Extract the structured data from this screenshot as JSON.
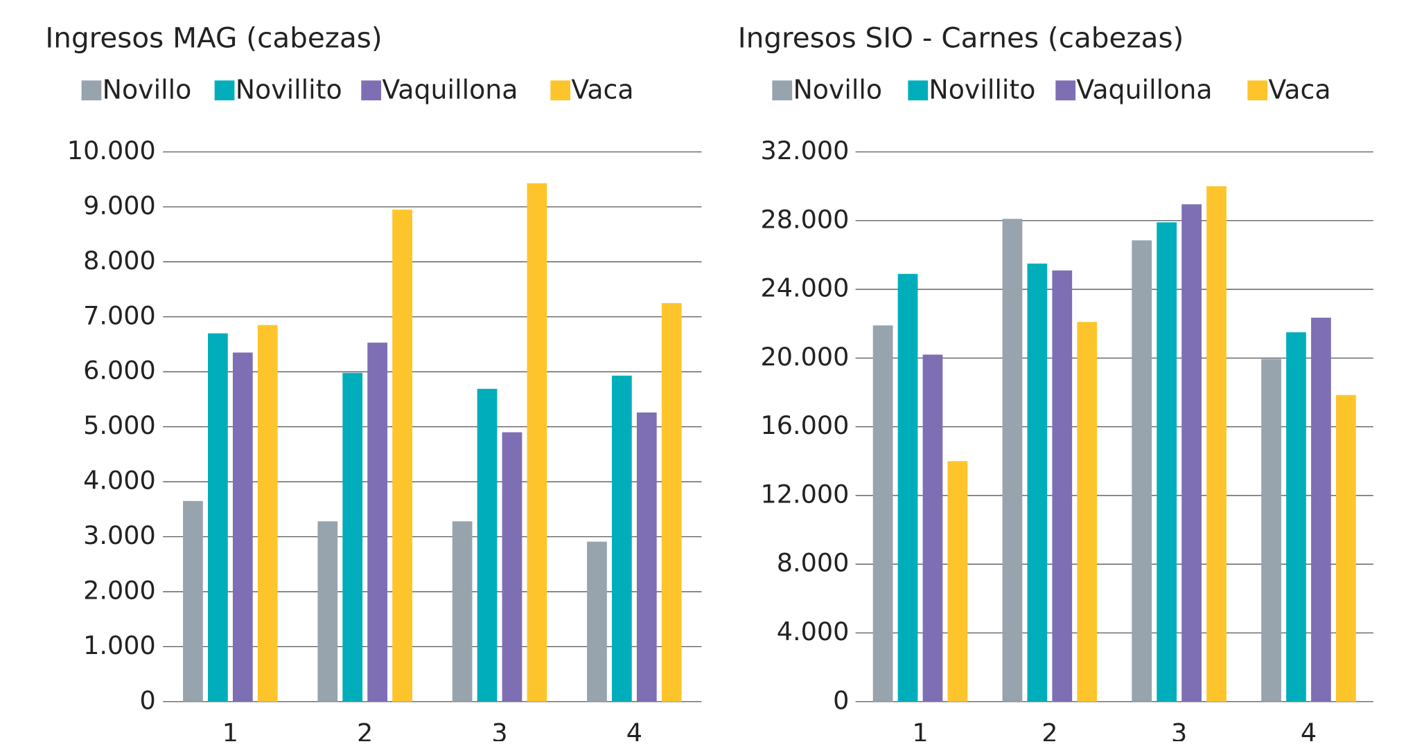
{
  "chart_data": [
    {
      "type": "bar",
      "title": "Ingresos MAG (cabezas)",
      "categories": [
        "1",
        "2",
        "3",
        "4"
      ],
      "series": [
        {
          "name": "Novillo",
          "color": "#97a3ad",
          "values": [
            3650,
            3280,
            3280,
            2910
          ]
        },
        {
          "name": "Novillito",
          "color": "#00aebb",
          "values": [
            6700,
            5980,
            5690,
            5930
          ]
        },
        {
          "name": "Vaquillona",
          "color": "#7e6fb4",
          "values": [
            6350,
            6530,
            4900,
            5260
          ]
        },
        {
          "name": "Vaca",
          "color": "#fdc52b",
          "values": [
            6850,
            8950,
            9430,
            7250
          ]
        }
      ],
      "ylim": [
        0,
        10000
      ],
      "yticks": [
        0,
        {
          "value": 1000,
          "label": "1.000"
        },
        {
          "value": 2000,
          "label": "2.000"
        },
        {
          "value": 3000,
          "label": "3.000"
        },
        {
          "value": 4000,
          "label": "4.000"
        },
        {
          "value": 5000,
          "label": "5.000"
        },
        {
          "value": 6000,
          "label": "6.000"
        },
        {
          "value": 7000,
          "label": "7.000"
        },
        {
          "value": 8000,
          "label": "8.000"
        },
        {
          "value": 9000,
          "label": "9.000"
        },
        {
          "value": 10000,
          "label": "10.000"
        }
      ],
      "grid": true,
      "legend": "top"
    },
    {
      "type": "bar",
      "title": "Ingresos SIO - Carnes (cabezas)",
      "categories": [
        "1",
        "2",
        "3",
        "4"
      ],
      "series": [
        {
          "name": "Novillo",
          "color": "#97a3ad",
          "values": [
            21900,
            28100,
            26850,
            19950
          ]
        },
        {
          "name": "Novillito",
          "color": "#00aebb",
          "values": [
            24900,
            25500,
            27900,
            21500
          ]
        },
        {
          "name": "Vaquillona",
          "color": "#7e6fb4",
          "values": [
            20200,
            25100,
            28950,
            22350
          ]
        },
        {
          "name": "Vaca",
          "color": "#fdc52b",
          "values": [
            14000,
            22100,
            30000,
            17850
          ]
        }
      ],
      "ylim": [
        0,
        32000
      ],
      "yticks": [
        0,
        {
          "value": 4000,
          "label": "4.000"
        },
        {
          "value": 8000,
          "label": "8.000"
        },
        {
          "value": 12000,
          "label": "12.000"
        },
        {
          "value": 16000,
          "label": "16.000"
        },
        {
          "value": 20000,
          "label": "20.000"
        },
        {
          "value": 24000,
          "label": "24.000"
        },
        {
          "value": 28000,
          "label": "28.000"
        },
        {
          "value": 32000,
          "label": "32.000"
        }
      ],
      "grid": true,
      "legend": "top"
    }
  ]
}
